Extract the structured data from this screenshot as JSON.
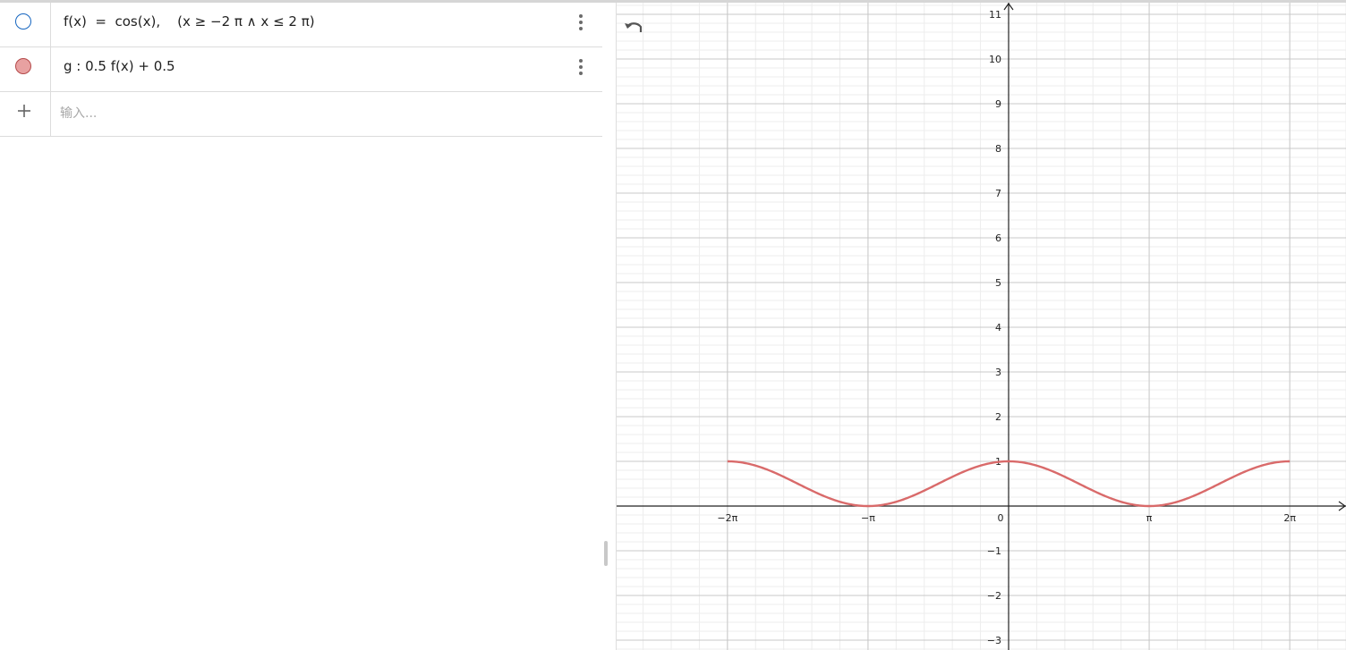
{
  "algebra": {
    "items": [
      {
        "expression": "f(x)  =  cos(x),    (x ≥ −2 π ∧ x ≤ 2 π)",
        "marble": "hollow",
        "color": "#1565c0"
      },
      {
        "expression": "g : 0.5 f(x) + 0.5",
        "marble": "filled",
        "color": "#d96a6a"
      }
    ],
    "input_placeholder": "输入..."
  },
  "graphics": {
    "x_ticks": [
      "−2π",
      "−π",
      "0",
      "π",
      "2π"
    ],
    "y_ticks": [
      "−3",
      "−2",
      "−1",
      "1",
      "2",
      "3",
      "4",
      "5",
      "6",
      "7",
      "8",
      "9",
      "10",
      "11"
    ],
    "curve_color": "#d96a6a",
    "grid_major_color": "#c8c8c8",
    "grid_minor_color": "#ededed"
  },
  "chart_data": {
    "type": "line",
    "x_range": [
      -8.9,
      11.9
    ],
    "y_range": [
      -3.2,
      11.2
    ],
    "series": [
      {
        "expression": "0.5 cos(x) + 0.5",
        "domain": [
          -6.283185,
          6.283185
        ]
      }
    ],
    "grid": true
  },
  "icons": {
    "undo": "undo-icon",
    "menu": "more-vert-icon",
    "add": "plus-icon"
  }
}
